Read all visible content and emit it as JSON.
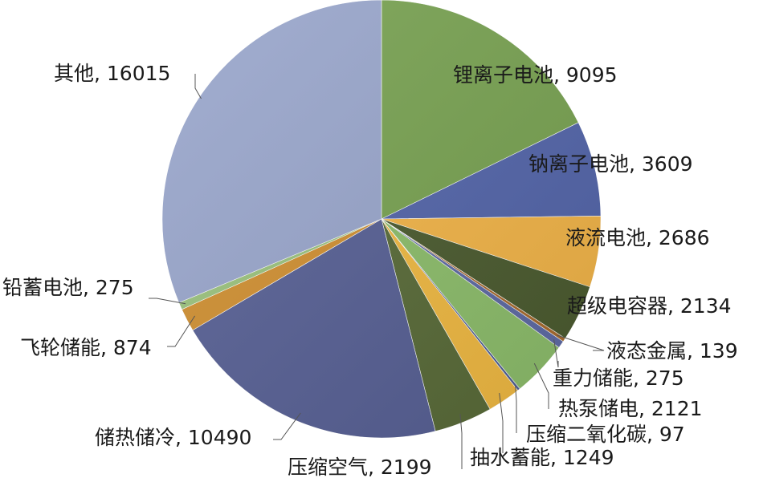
{
  "chart_data": {
    "type": "pie",
    "slices": [
      {
        "label": "锂离子电池",
        "value": 9095,
        "text": "锂离子电池, 9095",
        "color": "#77a150"
      },
      {
        "label": "钠离子电池",
        "value": 3609,
        "text": "钠离子电池, 3609",
        "color": "#5264a9"
      },
      {
        "label": "液流电池",
        "value": 2686,
        "text": "液流电池, 2686",
        "color": "#f2b447"
      },
      {
        "label": "超级电容器",
        "value": 2134,
        "text": "超级电容器, 2134",
        "color": "#4a5a2e"
      },
      {
        "label": "液态金属",
        "value": 139,
        "text": "液态金属, 139",
        "color": "#a86a2c"
      },
      {
        "label": "重力储能",
        "value": 275,
        "text": "重力储能, 275",
        "color": "#5d6aa4"
      },
      {
        "label": "热泵储电",
        "value": 2121,
        "text": "热泵储电, 2121",
        "color": "#8cbd6a"
      },
      {
        "label": "压缩二氧化碳",
        "value": 97,
        "text": "压缩二氧化碳, 97",
        "color": "#4f5f94"
      },
      {
        "label": "抽水蓄能",
        "value": 1249,
        "text": "抽水蓄能, 1249",
        "color": "#f0b941"
      },
      {
        "label": "压缩空气",
        "value": 2199,
        "text": "压缩空气, 2199",
        "color": "#586a37"
      },
      {
        "label": "储热储冷",
        "value": 10490,
        "text": "储热储冷, 10490",
        "color": "#565f94"
      },
      {
        "label": "飞轮储能",
        "value": 874,
        "text": "飞轮储能, 874",
        "color": "#d08f30"
      },
      {
        "label": "铅蓄电池",
        "value": 275,
        "text": "铅蓄电池, 275",
        "color": "#9ac27c"
      },
      {
        "label": "其他",
        "value": 16015,
        "text": "其他, 16015",
        "color": "#98a5cb"
      }
    ]
  }
}
